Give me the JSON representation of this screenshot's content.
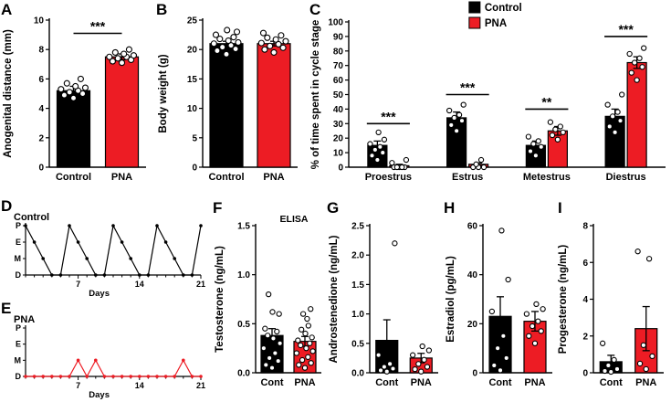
{
  "figure": {
    "background": "#ffffff",
    "colors": {
      "control": "#000000",
      "pna": "#ED1C24"
    }
  },
  "chart_data": [
    {
      "id": "A",
      "letter": "A",
      "type": "bar",
      "ylabel": "Anogenital distance (mm)",
      "ylim": [
        0,
        10
      ],
      "yticks": [
        0,
        2,
        4,
        6,
        8,
        10
      ],
      "ydecimals": 0,
      "categories": [
        {
          "label": "Control",
          "bars": [
            {
              "series": "Control",
              "color": "#000000",
              "value": 5.2,
              "error": 0.3,
              "points": [
                4.7,
                4.9,
                5.0,
                5.1,
                5.2,
                5.3,
                5.4,
                5.5,
                5.7,
                6.0
              ]
            }
          ]
        },
        {
          "label": "PNA",
          "bars": [
            {
              "series": "PNA",
              "color": "#ED1C24",
              "value": 7.5,
              "error": 0.2,
              "points": [
                7.1,
                7.2,
                7.3,
                7.4,
                7.5,
                7.5,
                7.6,
                7.7,
                7.8,
                8.0
              ]
            }
          ]
        }
      ],
      "sig": {
        "label": "***",
        "y": 9.1
      }
    },
    {
      "id": "B",
      "letter": "B",
      "type": "bar",
      "ylabel": "Body weight (g)",
      "ylim": [
        0,
        25
      ],
      "yticks": [
        0,
        5,
        10,
        15,
        20,
        25
      ],
      "ydecimals": 0,
      "categories": [
        {
          "label": "Control",
          "bars": [
            {
              "series": "Control",
              "color": "#000000",
              "value": 21.0,
              "error": 0.4,
              "points": [
                19.2,
                19.8,
                20.1,
                20.4,
                20.7,
                21.0,
                21.2,
                21.5,
                21.8,
                22.1,
                22.5,
                23.0,
                23.3
              ]
            }
          ]
        },
        {
          "label": "PNA",
          "bars": [
            {
              "series": "PNA",
              "color": "#ED1C24",
              "value": 21.0,
              "error": 0.4,
              "points": [
                19.5,
                20.0,
                20.3,
                20.6,
                20.9,
                21.1,
                21.4,
                21.7,
                22.0,
                22.4,
                22.8
              ]
            }
          ]
        }
      ]
    },
    {
      "id": "C",
      "letter": "C",
      "type": "bar",
      "ylabel": "% of time spent in cycle stage",
      "ylim": [
        0,
        100
      ],
      "yticks": [
        0,
        10,
        20,
        30,
        40,
        50,
        60,
        70,
        80,
        90,
        100
      ],
      "ydecimals": 0,
      "legend": [
        {
          "label": "Control",
          "color": "#000000"
        },
        {
          "label": "PNA",
          "color": "#ED1C24"
        }
      ],
      "categories": [
        {
          "label": "Proestrus",
          "sig": {
            "label": "***",
            "y": 30
          },
          "bars": [
            {
              "series": "Control",
              "color": "#000000",
              "value": 15,
              "error": 3,
              "points": [
                5,
                8,
                10,
                12,
                14,
                16,
                19,
                24
              ]
            },
            {
              "series": "PNA",
              "color": "#ED1C24",
              "value": 1,
              "error": 1,
              "points": [
                0,
                0,
                0,
                0,
                0,
                3,
                5
              ]
            }
          ]
        },
        {
          "label": "Estrus",
          "sig": {
            "label": "***",
            "y": 50
          },
          "bars": [
            {
              "series": "Control",
              "color": "#000000",
              "value": 34,
              "error": 4,
              "points": [
                25,
                29,
                32,
                34,
                36,
                39,
                43
              ]
            },
            {
              "series": "PNA",
              "color": "#ED1C24",
              "value": 2,
              "error": 1,
              "points": [
                0,
                0,
                0,
                2,
                5
              ]
            }
          ]
        },
        {
          "label": "Metestrus",
          "sig": {
            "label": "**",
            "y": 40
          },
          "bars": [
            {
              "series": "Control",
              "color": "#000000",
              "value": 15,
              "error": 3,
              "points": [
                8,
                11,
                14,
                16,
                18,
                21
              ]
            },
            {
              "series": "PNA",
              "color": "#ED1C24",
              "value": 25,
              "error": 3,
              "points": [
                19,
                22,
                24,
                26,
                28,
                31
              ]
            }
          ]
        },
        {
          "label": "Diestrus",
          "sig": {
            "label": "***",
            "y": 90
          },
          "bars": [
            {
              "series": "Control",
              "color": "#000000",
              "value": 35,
              "error": 5,
              "points": [
                24,
                28,
                32,
                35,
                38,
                43,
                50
              ]
            },
            {
              "series": "PNA",
              "color": "#ED1C24",
              "value": 72,
              "error": 4,
              "points": [
                60,
                65,
                69,
                72,
                75,
                78,
                82
              ]
            }
          ]
        }
      ]
    },
    {
      "id": "D",
      "letter": "D",
      "type": "line",
      "title": "Control",
      "color": "#000000",
      "stages": [
        "P",
        "E",
        "M",
        "D"
      ],
      "xlabel": "Days",
      "xticks": [
        7,
        14,
        21
      ],
      "xmax": 21,
      "values": [
        0,
        1,
        2,
        3,
        3,
        0,
        1,
        2,
        3,
        3,
        0,
        1,
        2,
        3,
        3,
        0,
        1,
        2,
        3,
        3,
        0
      ]
    },
    {
      "id": "E",
      "letter": "E",
      "type": "line",
      "title": "PNA",
      "color": "#ED1C24",
      "stages": [
        "P",
        "E",
        "M",
        "D"
      ],
      "xlabel": "Days",
      "xticks": [
        7,
        14,
        21
      ],
      "xmax": 21,
      "values": [
        3,
        3,
        3,
        3,
        3,
        3,
        2,
        3,
        2,
        3,
        3,
        3,
        3,
        3,
        3,
        3,
        3,
        3,
        2,
        3,
        3
      ]
    },
    {
      "id": "F",
      "letter": "F",
      "type": "bar",
      "annotation": "ELISA",
      "ylabel": "Testosterone (ng/mL)",
      "ylim": [
        0,
        1.5
      ],
      "yticks": [
        0,
        0.5,
        1,
        1.5
      ],
      "ydecimals": 1,
      "categories": [
        {
          "label": "Cont",
          "bars": [
            {
              "series": "Control",
              "color": "#000000",
              "value": 0.38,
              "error": 0.07,
              "points": [
                0.05,
                0.08,
                0.12,
                0.15,
                0.2,
                0.25,
                0.3,
                0.35,
                0.38,
                0.42,
                0.45,
                0.6,
                0.62,
                0.8
              ]
            }
          ]
        },
        {
          "label": "PNA",
          "bars": [
            {
              "series": "PNA",
              "color": "#ED1C24",
              "value": 0.32,
              "error": 0.05,
              "points": [
                0.05,
                0.08,
                0.1,
                0.13,
                0.16,
                0.2,
                0.22,
                0.25,
                0.28,
                0.3,
                0.33,
                0.36,
                0.4,
                0.44,
                0.48,
                0.55,
                0.6,
                0.65
              ]
            }
          ]
        }
      ]
    },
    {
      "id": "G",
      "letter": "G",
      "type": "bar",
      "ylabel": "Androstenedione (ng/mL)",
      "ylim": [
        0,
        2.5
      ],
      "yticks": [
        0,
        0.5,
        1,
        1.5,
        2,
        2.5
      ],
      "ydecimals": 1,
      "categories": [
        {
          "label": "Cont",
          "bars": [
            {
              "series": "Control",
              "color": "#000000",
              "value": 0.55,
              "error": 0.35,
              "points": [
                0.02,
                0.04,
                0.07,
                0.1,
                0.15,
                0.3,
                2.2
              ]
            }
          ]
        },
        {
          "label": "PNA",
          "bars": [
            {
              "series": "PNA",
              "color": "#ED1C24",
              "value": 0.25,
              "error": 0.08,
              "points": [
                0.02,
                0.06,
                0.1,
                0.15,
                0.22,
                0.3,
                0.38,
                0.45
              ]
            }
          ]
        }
      ]
    },
    {
      "id": "H",
      "letter": "H",
      "type": "bar",
      "ylabel": "Estradiol (pg/mL)",
      "ylim": [
        0,
        60
      ],
      "yticks": [
        0,
        20,
        40,
        60
      ],
      "ydecimals": 0,
      "categories": [
        {
          "label": "Cont",
          "bars": [
            {
              "series": "Control",
              "color": "#000000",
              "value": 23,
              "error": 8,
              "points": [
                1,
                3,
                6,
                10,
                15,
                25,
                38,
                58
              ]
            }
          ]
        },
        {
          "label": "PNA",
          "bars": [
            {
              "series": "PNA",
              "color": "#ED1C24",
              "value": 21,
              "error": 4,
              "points": [
                12,
                15,
                17,
                19,
                21,
                24,
                26,
                28
              ]
            }
          ]
        }
      ]
    },
    {
      "id": "I",
      "letter": "I",
      "type": "bar",
      "ylabel": "Progesterone (ng/mL)",
      "ylim": [
        0,
        8
      ],
      "yticks": [
        0,
        2,
        4,
        6,
        8
      ],
      "ydecimals": 0,
      "categories": [
        {
          "label": "Cont",
          "bars": [
            {
              "series": "Control",
              "color": "#000000",
              "value": 0.6,
              "error": 0.35,
              "points": [
                0.05,
                0.1,
                0.2,
                0.4,
                0.7,
                1.6
              ]
            }
          ]
        },
        {
          "label": "PNA",
          "bars": [
            {
              "series": "PNA",
              "color": "#ED1C24",
              "value": 2.4,
              "error": 1.2,
              "points": [
                0.2,
                0.5,
                0.9,
                1.5,
                6.2,
                6.6
              ]
            }
          ]
        }
      ]
    }
  ]
}
